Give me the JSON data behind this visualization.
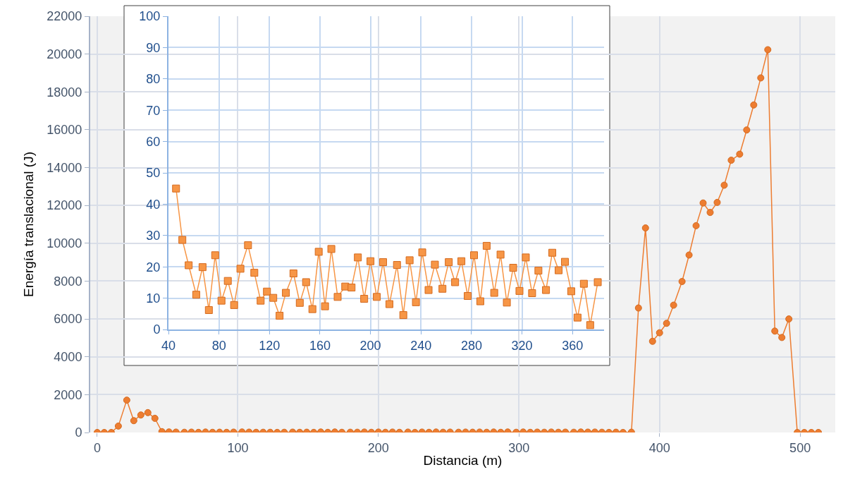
{
  "chart_data": [
    {
      "type": "line",
      "xlabel": "Distancia (m)",
      "ylabel": "Energía translacional (J)",
      "color": "#ed7d31",
      "marker": "circle",
      "grid": true,
      "xlim": [
        -5,
        525
      ],
      "xticks": [
        0,
        100,
        200,
        300,
        400,
        500
      ],
      "ylim": [
        0,
        22000
      ],
      "yticks": [
        0,
        2000,
        4000,
        6000,
        8000,
        10000,
        12000,
        14000,
        16000,
        18000,
        20000,
        22000
      ],
      "x": [
        0,
        5,
        10,
        15,
        21,
        26,
        31,
        36,
        41,
        46,
        51,
        56,
        62,
        67,
        72,
        77,
        82,
        87,
        92,
        97,
        103,
        108,
        113,
        118,
        123,
        128,
        133,
        139,
        144,
        149,
        154,
        159,
        164,
        169,
        174,
        180,
        185,
        190,
        195,
        200,
        205,
        210,
        215,
        221,
        226,
        231,
        236,
        241,
        246,
        251,
        257,
        262,
        267,
        272,
        277,
        282,
        287,
        292,
        298,
        303,
        308,
        313,
        318,
        323,
        328,
        333,
        339,
        344,
        349,
        354,
        359,
        364,
        369,
        374,
        380,
        385,
        390,
        395,
        400,
        405,
        410,
        416,
        421,
        426,
        431,
        436,
        441,
        446,
        451,
        457,
        462,
        467,
        472,
        477,
        482,
        487,
        492,
        498,
        503,
        508,
        513
      ],
      "values": [
        0,
        0,
        0,
        340,
        1710,
        625,
        925,
        1050,
        750,
        45,
        28.6,
        20.5,
        11.1,
        19.9,
        6.2,
        23.7,
        9.2,
        15.5,
        7.8,
        19.4,
        26.9,
        18.1,
        9.2,
        12.1,
        10.1,
        4.4,
        11.7,
        17.9,
        8.5,
        15.1,
        6.5,
        24.8,
        7.4,
        25.7,
        10.4,
        13.7,
        13.4,
        23.0,
        9.8,
        21.8,
        10.4,
        21.5,
        8.1,
        20.6,
        4.6,
        22.1,
        8.7,
        24.6,
        12.6,
        20.7,
        13.0,
        21.5,
        15.1,
        21.8,
        10.7,
        23.7,
        9.0,
        26.7,
        11.7,
        23.9,
        8.6,
        19.7,
        12.3,
        23.0,
        11.6,
        18.8,
        12.6,
        24.5,
        18.9,
        21.6,
        12.2,
        3.8,
        14.6,
        1.4,
        15.1,
        6580,
        10810,
        4820,
        5270,
        5770,
        6730,
        7980,
        9380,
        10930,
        12130,
        11630,
        12160,
        13070,
        14390,
        14710,
        15990,
        17310,
        18740,
        20230,
        5360,
        5020,
        6000,
        0,
        0,
        0,
        0
      ]
    },
    {
      "type": "line",
      "color": "#f79646",
      "marker": "square",
      "grid": true,
      "xlim": [
        40,
        385
      ],
      "xticks": [
        40,
        80,
        120,
        160,
        200,
        240,
        280,
        320,
        360
      ],
      "ylim": [
        0,
        100
      ],
      "yticks": [
        0,
        10,
        20,
        30,
        40,
        50,
        60,
        70,
        80,
        90,
        100
      ],
      "x": [
        46,
        51,
        56,
        62,
        67,
        72,
        77,
        82,
        87,
        92,
        97,
        103,
        108,
        113,
        118,
        123,
        128,
        133,
        139,
        144,
        149,
        154,
        159,
        164,
        169,
        174,
        180,
        185,
        190,
        195,
        200,
        205,
        210,
        215,
        221,
        226,
        231,
        236,
        241,
        246,
        251,
        257,
        262,
        267,
        272,
        277,
        282,
        287,
        292,
        298,
        303,
        308,
        313,
        318,
        323,
        328,
        333,
        339,
        344,
        349,
        354,
        359,
        364,
        369,
        374,
        380
      ],
      "values": [
        45,
        28.6,
        20.5,
        11.1,
        19.9,
        6.2,
        23.7,
        9.2,
        15.5,
        7.8,
        19.4,
        26.9,
        18.1,
        9.2,
        12.1,
        10.1,
        4.4,
        11.7,
        17.9,
        8.5,
        15.1,
        6.5,
        24.8,
        7.4,
        25.7,
        10.4,
        13.7,
        13.4,
        23.0,
        9.8,
        21.8,
        10.4,
        21.5,
        8.1,
        20.6,
        4.6,
        22.1,
        8.7,
        24.6,
        12.6,
        20.7,
        13.0,
        21.5,
        15.1,
        21.8,
        10.7,
        23.7,
        9.0,
        26.7,
        11.7,
        23.9,
        8.6,
        19.7,
        12.3,
        23.0,
        11.6,
        18.8,
        12.6,
        24.5,
        18.9,
        21.6,
        12.2,
        3.8,
        14.6,
        1.4,
        15.1
      ]
    }
  ]
}
